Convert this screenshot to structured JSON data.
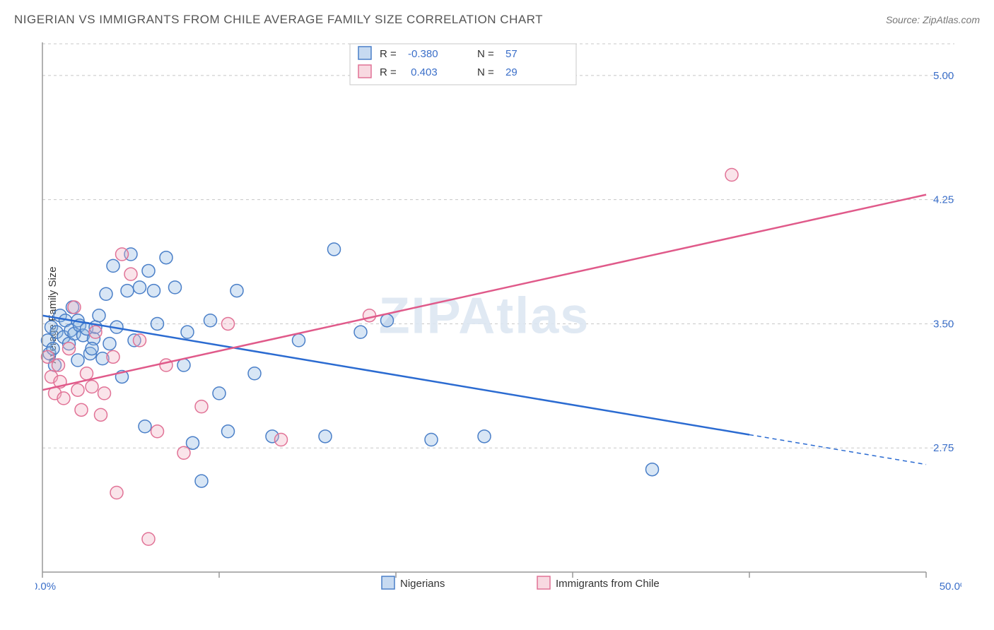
{
  "title": "NIGERIAN VS IMMIGRANTS FROM CHILE AVERAGE FAMILY SIZE CORRELATION CHART",
  "source": "Source: ZipAtlas.com",
  "watermark": "ZIPAtlas",
  "y_axis_label": "Average Family Size",
  "chart": {
    "type": "scatter-with-regression",
    "xlim": [
      0,
      50
    ],
    "ylim": [
      2.0,
      5.2
    ],
    "x_ticks": [
      0,
      10,
      20,
      30,
      40,
      50
    ],
    "x_tick_labels_shown": {
      "0": "0.0%",
      "50": "50.0%"
    },
    "y_gridlines": [
      2.75,
      3.5,
      4.25,
      5.0
    ],
    "y_tick_labels": [
      "2.75",
      "3.50",
      "4.25",
      "5.00"
    ],
    "background_color": "#ffffff",
    "grid_color": "#c8c8c8",
    "axis_color": "#999999",
    "label_color": "#3b6fc9",
    "marker_radius": 9,
    "marker_fill_opacity": 0.35,
    "marker_stroke_width": 1.5,
    "series": [
      {
        "name": "Nigerians",
        "color": "#8fb6e3",
        "stroke": "#4a7fc8",
        "line_color": "#2b6bd1",
        "R": "-0.380",
        "N": "57",
        "regression": {
          "x1": 0,
          "y1": 3.55,
          "x2": 50,
          "y2": 2.65,
          "solid_until_x": 40
        },
        "points": [
          [
            0.3,
            3.4
          ],
          [
            0.4,
            3.32
          ],
          [
            0.5,
            3.48
          ],
          [
            0.6,
            3.35
          ],
          [
            0.7,
            3.25
          ],
          [
            0.8,
            3.45
          ],
          [
            1.0,
            3.55
          ],
          [
            1.2,
            3.42
          ],
          [
            1.3,
            3.52
          ],
          [
            1.5,
            3.38
          ],
          [
            1.6,
            3.46
          ],
          [
            1.7,
            3.6
          ],
          [
            1.8,
            3.44
          ],
          [
            2.0,
            3.52
          ],
          [
            2.1,
            3.49
          ],
          [
            2.3,
            3.43
          ],
          [
            2.5,
            3.47
          ],
          [
            2.7,
            3.32
          ],
          [
            2.9,
            3.41
          ],
          [
            3.0,
            3.48
          ],
          [
            3.2,
            3.55
          ],
          [
            3.4,
            3.29
          ],
          [
            3.6,
            3.68
          ],
          [
            3.8,
            3.38
          ],
          [
            4.0,
            3.85
          ],
          [
            4.2,
            3.48
          ],
          [
            4.5,
            3.18
          ],
          [
            4.8,
            3.7
          ],
          [
            5.0,
            3.92
          ],
          [
            5.2,
            3.4
          ],
          [
            5.5,
            3.72
          ],
          [
            5.8,
            2.88
          ],
          [
            6.0,
            3.82
          ],
          [
            6.3,
            3.7
          ],
          [
            6.5,
            3.5
          ],
          [
            7.0,
            3.9
          ],
          [
            7.5,
            3.72
          ],
          [
            8.0,
            3.25
          ],
          [
            8.2,
            3.45
          ],
          [
            8.5,
            2.78
          ],
          [
            9.0,
            2.55
          ],
          [
            9.5,
            3.52
          ],
          [
            10.0,
            3.08
          ],
          [
            10.5,
            2.85
          ],
          [
            11.0,
            3.7
          ],
          [
            12.0,
            3.2
          ],
          [
            13.0,
            2.82
          ],
          [
            14.5,
            3.4
          ],
          [
            16.0,
            2.82
          ],
          [
            16.5,
            3.95
          ],
          [
            18.0,
            3.45
          ],
          [
            19.5,
            3.52
          ],
          [
            22.0,
            2.8
          ],
          [
            25.0,
            2.82
          ],
          [
            34.5,
            2.62
          ],
          [
            2.0,
            3.28
          ],
          [
            2.8,
            3.35
          ]
        ]
      },
      {
        "name": "Immigrants from Chile",
        "color": "#f2b3c4",
        "stroke": "#e17296",
        "line_color": "#e05a8a",
        "R": "0.403",
        "N": "29",
        "regression": {
          "x1": 0,
          "y1": 3.1,
          "x2": 50,
          "y2": 4.28,
          "solid_until_x": 50
        },
        "points": [
          [
            0.3,
            3.3
          ],
          [
            0.5,
            3.18
          ],
          [
            0.7,
            3.08
          ],
          [
            0.9,
            3.25
          ],
          [
            1.0,
            3.15
          ],
          [
            1.2,
            3.05
          ],
          [
            1.5,
            3.35
          ],
          [
            1.8,
            3.6
          ],
          [
            2.0,
            3.1
          ],
          [
            2.2,
            2.98
          ],
          [
            2.5,
            3.2
          ],
          [
            2.8,
            3.12
          ],
          [
            3.0,
            3.45
          ],
          [
            3.3,
            2.95
          ],
          [
            3.5,
            3.08
          ],
          [
            4.0,
            3.3
          ],
          [
            4.2,
            2.48
          ],
          [
            4.5,
            3.92
          ],
          [
            5.0,
            3.8
          ],
          [
            5.5,
            3.4
          ],
          [
            6.0,
            2.2
          ],
          [
            6.5,
            2.85
          ],
          [
            7.0,
            3.25
          ],
          [
            8.0,
            2.72
          ],
          [
            9.0,
            3.0
          ],
          [
            10.5,
            3.5
          ],
          [
            13.5,
            2.8
          ],
          [
            18.5,
            3.55
          ],
          [
            39.0,
            4.4
          ]
        ]
      }
    ],
    "top_legend": {
      "R_label": "R =",
      "N_label": "N =",
      "value_color": "#3b6fc9",
      "border_color": "#c8c8c8"
    }
  }
}
